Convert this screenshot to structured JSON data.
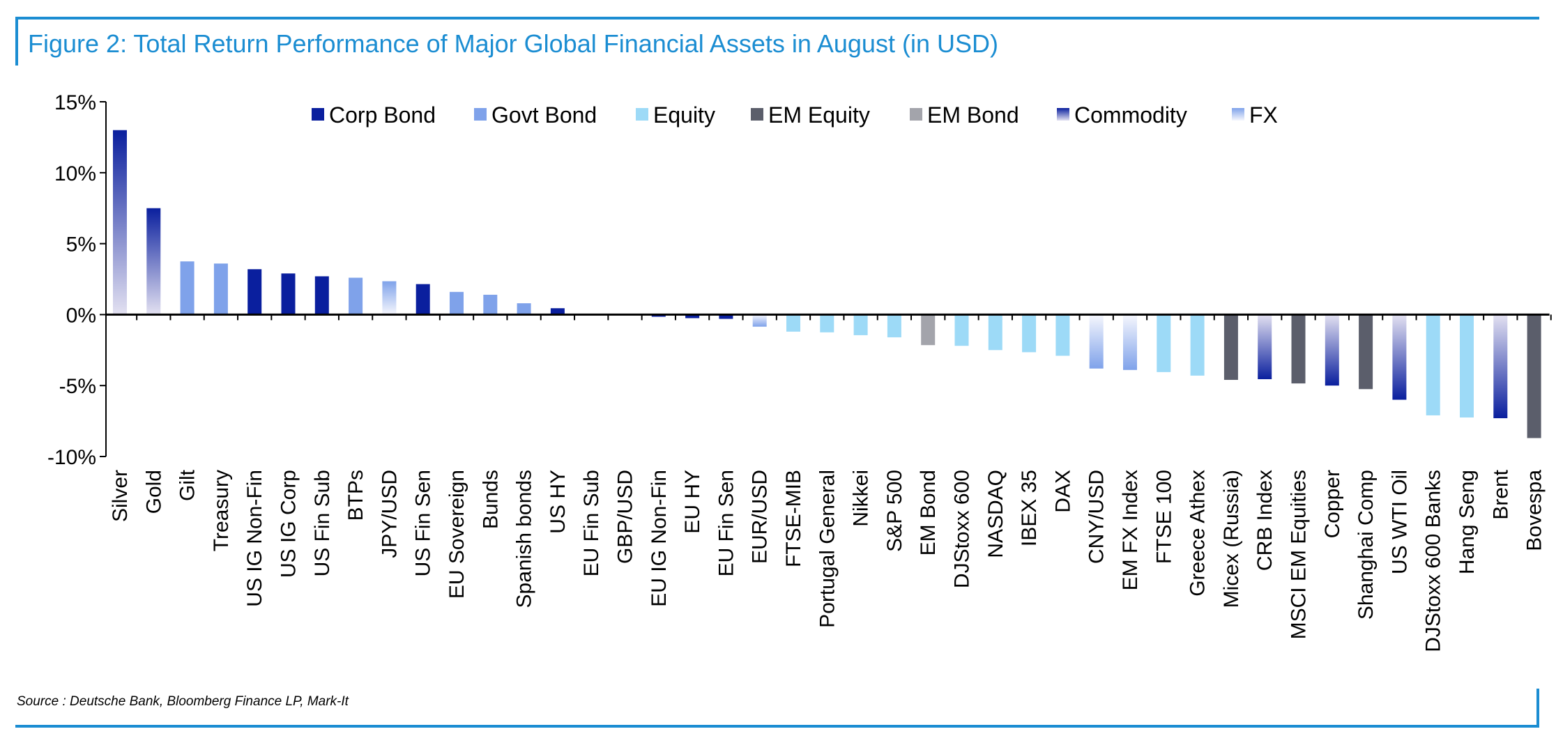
{
  "title": "Figure 2: Total Return Performance of Major Global Financial Assets in August (in USD)",
  "source": "Source : Deutsche Bank, Bloomberg Finance LP, Mark-It",
  "colors": {
    "frame": "#1b8dd2",
    "corp_bond": "#0a1f9e",
    "govt_bond": "#7fa2ea",
    "equity": "#9ddaf7",
    "em_equity": "#5b5e6b",
    "em_bond": "#a3a4ab",
    "commodity_dark": "#0a1f9e",
    "commodity_light": "#e3e1f1",
    "fx_dark": "#7fa2ea",
    "fx_light": "#f6f7fd"
  },
  "chart_data": {
    "type": "bar",
    "ylim": [
      -10,
      15
    ],
    "yticks": [
      15,
      10,
      5,
      0,
      -5,
      -10
    ],
    "ytick_labels": [
      "15%",
      "10%",
      "5%",
      "0%",
      "-5%",
      "-10%"
    ],
    "grid": false,
    "legend_position": "top-center",
    "legend": [
      {
        "key": "corp",
        "label": "Corp Bond"
      },
      {
        "key": "govt",
        "label": "Govt Bond"
      },
      {
        "key": "equity",
        "label": "Equity"
      },
      {
        "key": "emeq",
        "label": "EM Equity"
      },
      {
        "key": "embond",
        "label": "EM Bond"
      },
      {
        "key": "commodity",
        "label": "Commodity"
      },
      {
        "key": "fx",
        "label": "FX"
      }
    ],
    "bars": [
      {
        "label": "Silver",
        "value": 13.0,
        "group": "commodity"
      },
      {
        "label": "Gold",
        "value": 7.5,
        "group": "commodity"
      },
      {
        "label": "Gilt",
        "value": 3.75,
        "group": "govt"
      },
      {
        "label": "Treasury",
        "value": 3.6,
        "group": "govt"
      },
      {
        "label": "US IG Non-Fin",
        "value": 3.2,
        "group": "corp"
      },
      {
        "label": "US IG Corp",
        "value": 2.9,
        "group": "corp"
      },
      {
        "label": "US Fin Sub",
        "value": 2.7,
        "group": "corp"
      },
      {
        "label": "BTPs",
        "value": 2.6,
        "group": "govt"
      },
      {
        "label": "JPY/USD",
        "value": 2.35,
        "group": "fx"
      },
      {
        "label": "US Fin Sen",
        "value": 2.15,
        "group": "corp"
      },
      {
        "label": "EU Sovereign",
        "value": 1.6,
        "group": "govt"
      },
      {
        "label": "Bunds",
        "value": 1.4,
        "group": "govt"
      },
      {
        "label": "Spanish bonds",
        "value": 0.8,
        "group": "govt"
      },
      {
        "label": "US HY",
        "value": 0.45,
        "group": "corp"
      },
      {
        "label": "EU Fin Sub",
        "value": 0.0,
        "group": "corp"
      },
      {
        "label": "GBP/USD",
        "value": 0.0,
        "group": "fx"
      },
      {
        "label": "EU IG Non-Fin",
        "value": -0.15,
        "group": "corp"
      },
      {
        "label": "EU HY",
        "value": -0.25,
        "group": "corp"
      },
      {
        "label": "EU Fin Sen",
        "value": -0.3,
        "group": "corp"
      },
      {
        "label": "EUR/USD",
        "value": -0.85,
        "group": "fx"
      },
      {
        "label": "FTSE-MIB",
        "value": -1.2,
        "group": "equity"
      },
      {
        "label": "Portugal General",
        "value": -1.25,
        "group": "equity"
      },
      {
        "label": "Nikkei",
        "value": -1.45,
        "group": "equity"
      },
      {
        "label": "S&P 500",
        "value": -1.6,
        "group": "equity"
      },
      {
        "label": "EM Bond",
        "value": -2.15,
        "group": "embond"
      },
      {
        "label": "DJStoxx 600",
        "value": -2.2,
        "group": "equity"
      },
      {
        "label": "NASDAQ",
        "value": -2.5,
        "group": "equity"
      },
      {
        "label": "IBEX 35",
        "value": -2.65,
        "group": "equity"
      },
      {
        "label": "DAX",
        "value": -2.9,
        "group": "equity"
      },
      {
        "label": "CNY/USD",
        "value": -3.8,
        "group": "fx"
      },
      {
        "label": "EM FX Index",
        "value": -3.9,
        "group": "fx"
      },
      {
        "label": "FTSE 100",
        "value": -4.05,
        "group": "equity"
      },
      {
        "label": "Greece Athex",
        "value": -4.3,
        "group": "equity"
      },
      {
        "label": "Micex (Russia)",
        "value": -4.6,
        "group": "emeq"
      },
      {
        "label": "CRB Index",
        "value": -4.55,
        "group": "commodity"
      },
      {
        "label": "MSCI EM Equities",
        "value": -4.85,
        "group": "emeq"
      },
      {
        "label": "Copper",
        "value": -5.0,
        "group": "commodity"
      },
      {
        "label": "Shanghai Comp",
        "value": -5.25,
        "group": "emeq"
      },
      {
        "label": "US WTI Oil",
        "value": -6.0,
        "group": "commodity"
      },
      {
        "label": "DJStoxx 600 Banks",
        "value": -7.1,
        "group": "equity"
      },
      {
        "label": "Hang Seng",
        "value": -7.25,
        "group": "equity"
      },
      {
        "label": "Brent",
        "value": -7.3,
        "group": "commodity"
      },
      {
        "label": "Bovespa",
        "value": -8.7,
        "group": "emeq"
      }
    ]
  }
}
